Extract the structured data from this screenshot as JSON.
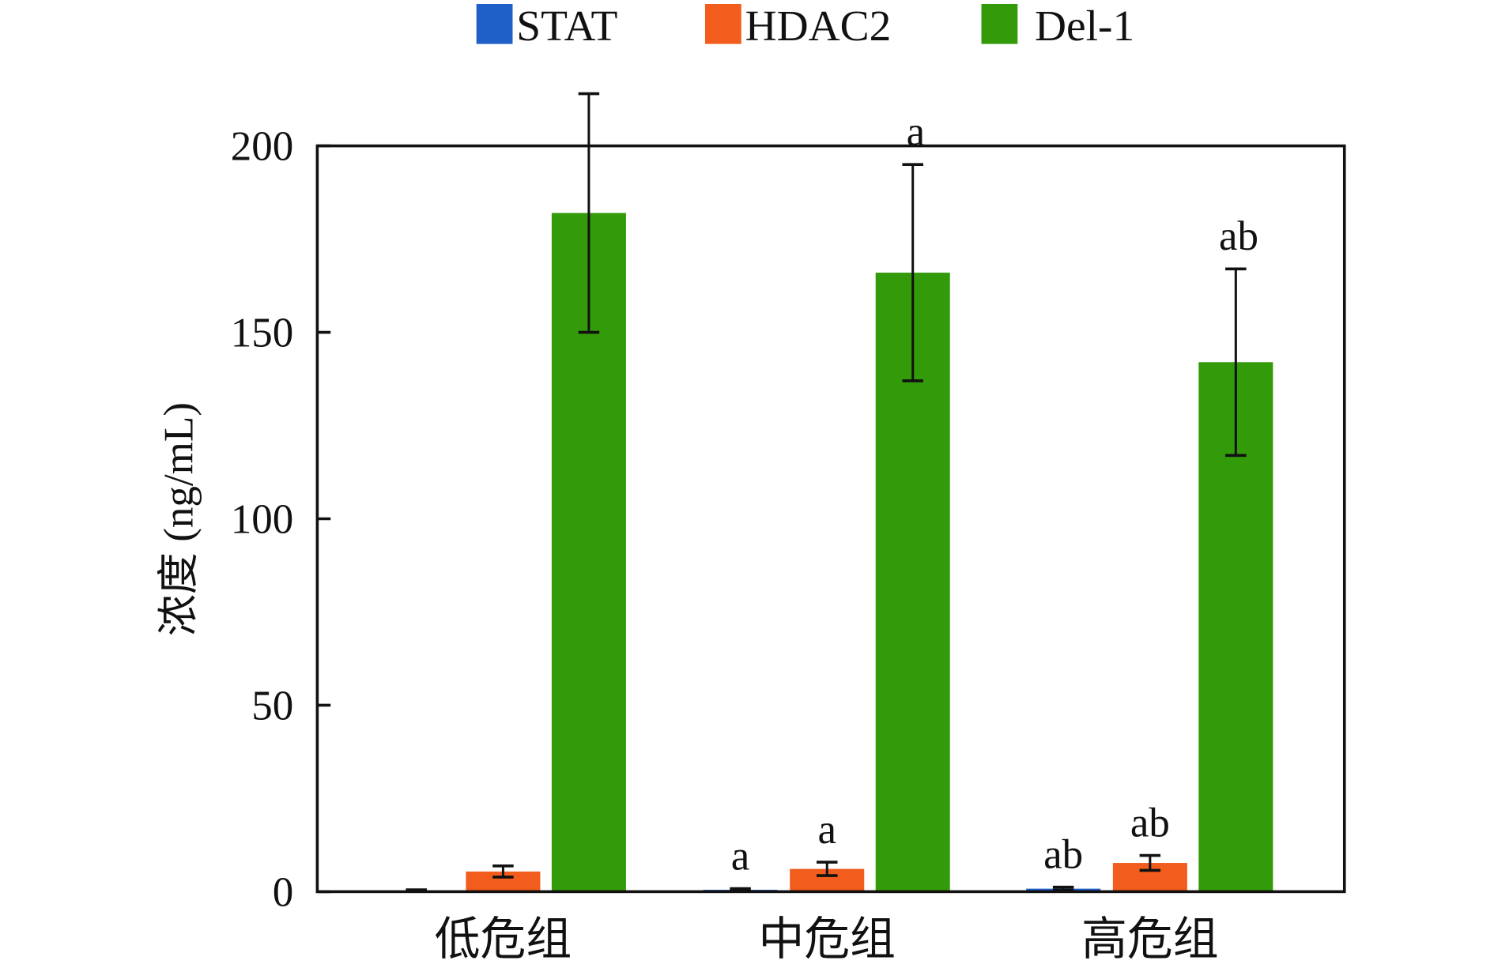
{
  "chart_data": {
    "type": "bar",
    "title": "",
    "xlabel": "",
    "ylabel": "浓度 (ng/mL)",
    "ylim": [
      0,
      200
    ],
    "yticks": [
      0,
      50,
      100,
      150,
      200
    ],
    "grid": false,
    "legend_position": "top",
    "categories": [
      "低危组",
      "中危组",
      "高危组"
    ],
    "series": [
      {
        "name": "STAT",
        "color": "#1f5fc8",
        "values": [
          0.3,
          0.5,
          0.8
        ],
        "errors": [
          0.2,
          0.3,
          0.4
        ],
        "annotations": [
          "",
          "a",
          "ab"
        ]
      },
      {
        "name": "HDAC2",
        "color": "#f25c1c",
        "values": [
          5.4,
          6.1,
          7.7
        ],
        "errors": [
          1.5,
          1.8,
          2.0
        ],
        "annotations": [
          "",
          "a",
          "ab"
        ]
      },
      {
        "name": "Del-1",
        "color": "#339a0a",
        "values": [
          182,
          166,
          142
        ],
        "errors": [
          32,
          29,
          25
        ],
        "annotations": [
          "",
          "a",
          "ab"
        ]
      }
    ]
  }
}
